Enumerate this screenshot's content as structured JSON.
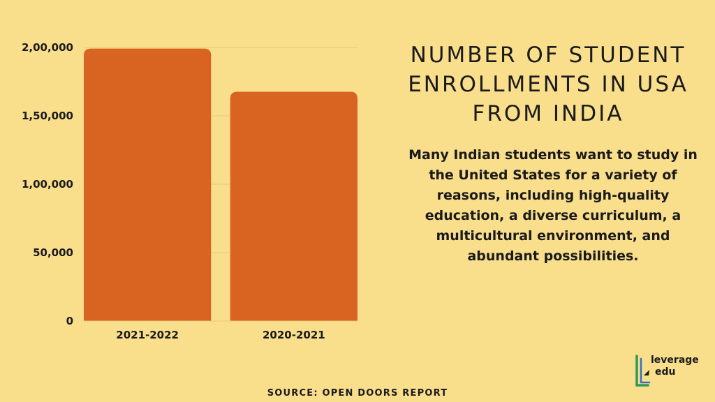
{
  "chart_data": {
    "type": "bar",
    "categories": [
      "2021-2022",
      "2020-2021"
    ],
    "values": [
      199182,
      167582
    ],
    "title": "",
    "xlabel": "",
    "ylabel": "",
    "ylim": [
      0,
      200000
    ],
    "yticks": [
      0,
      50000,
      100000,
      150000,
      200000
    ],
    "ytick_labels": [
      "0",
      "50,000",
      "1,00,000",
      "1,50,000",
      "2,00,000"
    ],
    "grid": true,
    "legend": "none"
  },
  "colors": {
    "background": "#F9DE8C",
    "bar": "#D96320",
    "grid": "#E6CB7E",
    "text": "#1a1a1a",
    "logo_green": "#2E9A58",
    "logo_blue": "#2F72C4"
  },
  "heading": "NUMBER OF STUDENT ENROLLMENTS IN USA FROM INDIA",
  "description": "Many Indian students want to study in the United States for a variety of reasons, including high-quality education, a diverse curriculum, a multicultural environment, and abundant possibilities.",
  "source": "SOURCE: OPEN DOORS REPORT",
  "logo": {
    "icon": "leverage-edu-logo-icon",
    "line1": "leverage",
    "line2": "edu"
  }
}
